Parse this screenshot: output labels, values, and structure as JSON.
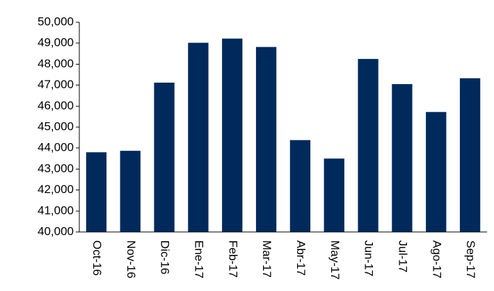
{
  "chart_data": {
    "type": "bar",
    "categories": [
      "Oct-16",
      "Nov-16",
      "Dic-16",
      "Ene-17",
      "Feb-17",
      "Mar-17",
      "Abr-17",
      "May-17",
      "Jun-17",
      "Jul-17",
      "Ago-17",
      "Sep-17"
    ],
    "values": [
      43800,
      43870,
      47120,
      49020,
      49220,
      48820,
      44380,
      43500,
      48250,
      47050,
      45720,
      47330
    ],
    "y_ticks": [
      "40,000",
      "41,000",
      "42,000",
      "43,000",
      "44,000",
      "45,000",
      "46,000",
      "47,000",
      "48,000",
      "49,000",
      "50,000"
    ],
    "ylim": [
      40000,
      50000
    ],
    "grid": false,
    "legend": "none",
    "bar_color": "#002A5C",
    "title": "",
    "xlabel": "",
    "ylabel": ""
  }
}
